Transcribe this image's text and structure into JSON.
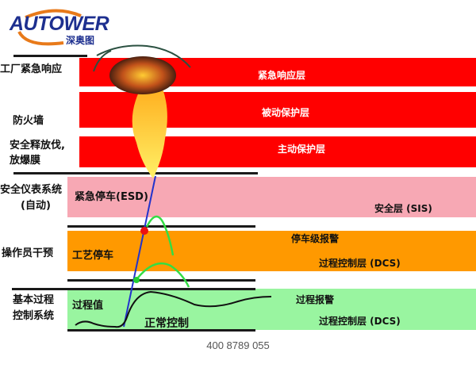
{
  "logo": {
    "brand": "AUTOWER",
    "sub": "深奥图"
  },
  "colors": {
    "red_layer": "#ff0000",
    "sis_layer": "#f7a8b4",
    "dcs_alarm_layer": "#ff9900",
    "bpcs_layer": "#99f5a0",
    "brand": "#1d2f8f",
    "brand_arc": "#e87a1a"
  },
  "left_labels": {
    "emergency_response": "工厂紧急响应",
    "firewall": "防火墙",
    "relief_line1": "安全释放伐,",
    "relief_line2": "放爆膜",
    "sis_line1": "安全仪表系统",
    "sis_line2": "(自动)",
    "operator": "操作员干预",
    "bpcs_line1": "基本过程",
    "bpcs_line2": "控制系统"
  },
  "layers": {
    "emergency": "紧急响应层",
    "passive": "被动保护层",
    "active": "主动保护层",
    "sis_esd": "紧急停车(ESD)",
    "sis_name": "安全层 (SIS)",
    "process_shutdown": "工艺停车",
    "shutdown_alarm": "停车级报警",
    "dcs1": "过程控制层 (DCS)",
    "process_value": "过程值",
    "normal_control": "正常控制",
    "process_alarm": "过程报警",
    "dcs2": "过程控制层 (DCS)"
  },
  "footer": {
    "phone": "400 8789 055"
  }
}
